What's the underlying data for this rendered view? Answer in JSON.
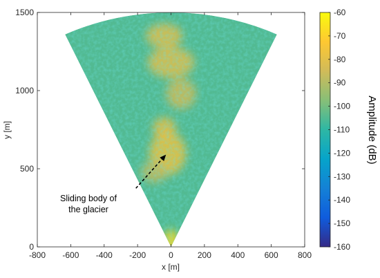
{
  "chart_data": {
    "type": "heatmap",
    "title": "",
    "xlabel": "x [m]",
    "ylabel": "y [m]",
    "xlim": [
      -800,
      800
    ],
    "ylim": [
      0,
      1500
    ],
    "xticks": [
      -800,
      -600,
      -400,
      -200,
      0,
      200,
      400,
      600,
      800
    ],
    "yticks": [
      0,
      500,
      1000,
      1500
    ],
    "grid": false,
    "colormap": "parula",
    "colorbar": {
      "label": "Amplitude (dB)",
      "range": [
        -160,
        -60
      ],
      "ticks": [
        -60,
        -70,
        -80,
        -90,
        -100,
        -110,
        -120,
        -130,
        -140,
        -150,
        -160
      ],
      "colors": [
        "#352a87",
        "#0f5cdd",
        "#1481d6",
        "#06a4ca",
        "#2eb7a4",
        "#87bf77",
        "#d1bb59",
        "#fec832",
        "#f9fb0e"
      ]
    },
    "sector": {
      "apex": [
        0,
        0
      ],
      "radius": 1500,
      "half_angle_deg": 25,
      "background_level_db": -105
    },
    "annotation": {
      "text_line1": "Sliding body of",
      "text_line2": "the glacier",
      "arrow_target": [
        -30,
        590
      ],
      "arrow_tail": [
        -210,
        375
      ]
    },
    "bright_regions": [
      {
        "x": -20,
        "y": 600,
        "sx": 110,
        "sy": 140,
        "level_db": -78
      },
      {
        "x": -40,
        "y": 760,
        "sx": 70,
        "sy": 70,
        "level_db": -80
      },
      {
        "x": -100,
        "y": 480,
        "sx": 80,
        "sy": 70,
        "level_db": -88
      },
      {
        "x": 60,
        "y": 980,
        "sx": 90,
        "sy": 100,
        "level_db": -86
      },
      {
        "x": 0,
        "y": 1180,
        "sx": 140,
        "sy": 100,
        "level_db": -82
      },
      {
        "x": -40,
        "y": 1350,
        "sx": 110,
        "sy": 80,
        "level_db": -82
      },
      {
        "x": 0,
        "y": 40,
        "sx": 45,
        "sy": 70,
        "level_db": -68
      }
    ]
  }
}
